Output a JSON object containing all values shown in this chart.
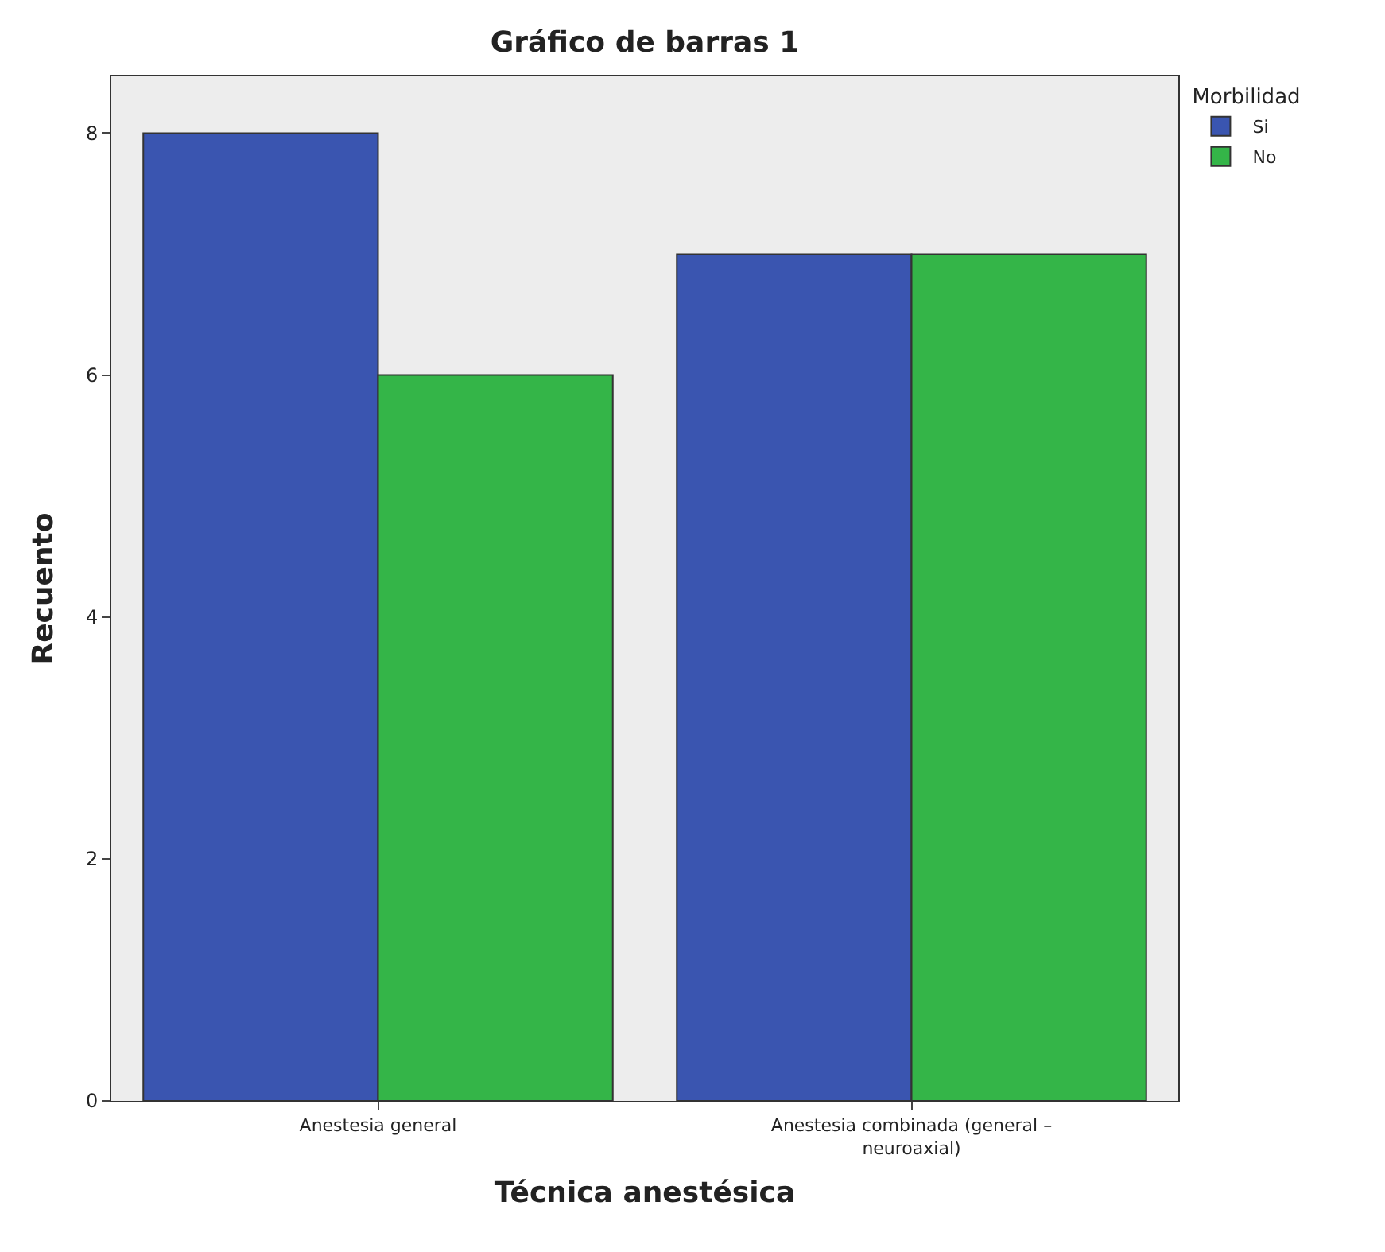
{
  "chart_data": {
    "type": "bar",
    "title": "Gráfico de barras 1",
    "xlabel": "Técnica anestésica",
    "ylabel": "Recuento",
    "legend_title": "Morbilidad",
    "categories": [
      "Anestesia general",
      "Anestesia combinada (general –\nneuroaxial)"
    ],
    "series": [
      {
        "name": "Si",
        "color": "#3a55b0",
        "values": [
          8,
          7
        ]
      },
      {
        "name": "No",
        "color": "#34b548",
        "values": [
          6,
          7
        ]
      }
    ],
    "ylim": [
      0,
      8.47
    ],
    "yticks": [
      0,
      2,
      4,
      6,
      8
    ],
    "grid": false,
    "legend": "top right"
  }
}
